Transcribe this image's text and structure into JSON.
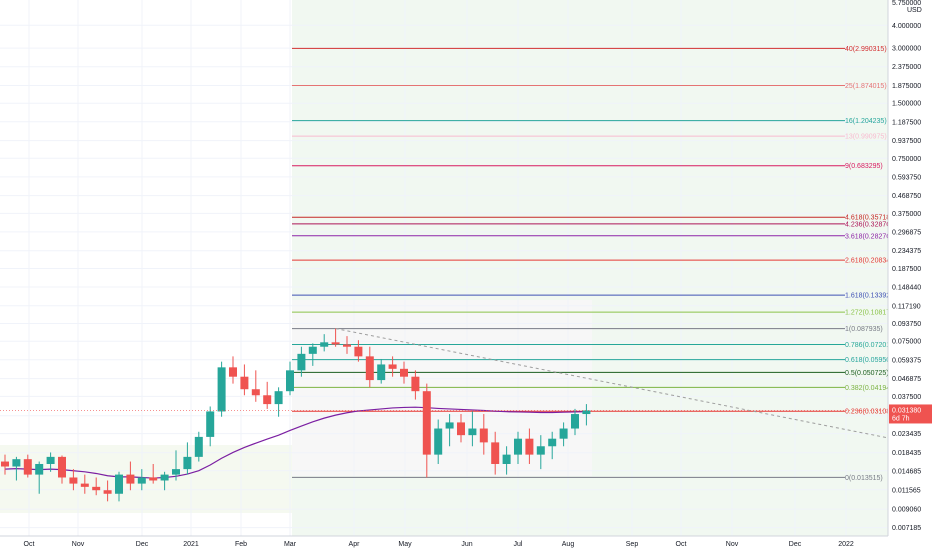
{
  "axis": {
    "currency": "USD",
    "top_tick": "5.750000",
    "y_ticks": [
      "4.000000",
      "3.000000",
      "2.375000",
      "1.875000",
      "1.500000",
      "1.187500",
      "0.937500",
      "0.750000",
      "0.593750",
      "0.468750",
      "0.375000",
      "0.296875",
      "0.234375",
      "0.187500",
      "0.148440",
      "0.117190",
      "0.093750",
      "0.075000",
      "0.059375",
      "0.046875",
      "0.037500",
      "0.029375",
      "0.023435",
      "0.018435",
      "0.014685",
      "0.011565",
      "0.009060",
      "0.007185"
    ],
    "x_ticks": [
      "Oct",
      "Nov",
      "Dec",
      "2021",
      "Feb",
      "Mar",
      "Apr",
      "May",
      "Jun",
      "Jul",
      "Aug",
      "Sep",
      "Oct",
      "Nov",
      "Dec",
      "2022"
    ]
  },
  "price_tag": {
    "price": "0.031380",
    "countdown": "6d 7h",
    "color": "#ef5350"
  },
  "colors": {
    "up": "#26a69a",
    "down": "#ef5350",
    "ma": "#7b1fa2"
  },
  "chart_data": {
    "type": "candlestick",
    "timeframe": "weekly",
    "fib_levels": [
      {
        "label": "40(2.990315)",
        "value": 2.990315,
        "color": "#d32f2f"
      },
      {
        "label": "25(1.874015)",
        "value": 1.874015,
        "color": "#e57373"
      },
      {
        "label": "16(1.204235)",
        "value": 1.204235,
        "color": "#26a69a"
      },
      {
        "label": "13(0.990975)",
        "value": 0.990975,
        "color": "#f8bbd0"
      },
      {
        "label": "9(0.683295)",
        "value": 0.683295,
        "color": "#d81b60"
      },
      {
        "label": "4.618(0.357185)",
        "value": 0.357185,
        "color": "#c62828"
      },
      {
        "label": "4.236(0.328760)",
        "value": 0.32876,
        "color": "#ad1457"
      },
      {
        "label": "3.618(0.282765)",
        "value": 0.282765,
        "color": "#8e24aa"
      },
      {
        "label": "2.618(0.208345)",
        "value": 0.208345,
        "color": "#e53935"
      },
      {
        "label": "1.618(0.133925)",
        "value": 0.133925,
        "color": "#3f51b5"
      },
      {
        "label": "1.272(0.108175)",
        "value": 0.108175,
        "color": "#8bc34a"
      },
      {
        "label": "1(0.087935)",
        "value": 0.087935,
        "color": "#787b86"
      },
      {
        "label": "0.786(0.072010)",
        "value": 0.07201,
        "color": "#26a69a"
      },
      {
        "label": "0.618(0.059505)",
        "value": 0.059505,
        "color": "#26a69a"
      },
      {
        "label": "0.5(0.050725)",
        "value": 0.050725,
        "color": "#1b5e20"
      },
      {
        "label": "0.382(0.041945)",
        "value": 0.041945,
        "color": "#7cb342"
      },
      {
        "label": "0.236(0.031080)",
        "value": 0.03108,
        "color": "#e53935"
      },
      {
        "label": "0(0.013515)",
        "value": 0.013515,
        "color": "#787b86"
      }
    ],
    "candles": [
      {
        "o": 0.0165,
        "h": 0.018,
        "l": 0.014,
        "c": 0.0155
      },
      {
        "o": 0.0155,
        "h": 0.0175,
        "l": 0.013,
        "c": 0.017
      },
      {
        "o": 0.017,
        "h": 0.018,
        "l": 0.0135,
        "c": 0.014
      },
      {
        "o": 0.014,
        "h": 0.0165,
        "l": 0.011,
        "c": 0.016
      },
      {
        "o": 0.016,
        "h": 0.0185,
        "l": 0.0145,
        "c": 0.0175
      },
      {
        "o": 0.0175,
        "h": 0.0178,
        "l": 0.0125,
        "c": 0.0135
      },
      {
        "o": 0.0135,
        "h": 0.015,
        "l": 0.0115,
        "c": 0.0125
      },
      {
        "o": 0.0125,
        "h": 0.014,
        "l": 0.011,
        "c": 0.012
      },
      {
        "o": 0.012,
        "h": 0.0135,
        "l": 0.0108,
        "c": 0.0115
      },
      {
        "o": 0.0115,
        "h": 0.013,
        "l": 0.01,
        "c": 0.011
      },
      {
        "o": 0.011,
        "h": 0.0145,
        "l": 0.01,
        "c": 0.014
      },
      {
        "o": 0.014,
        "h": 0.0165,
        "l": 0.0115,
        "c": 0.0125
      },
      {
        "o": 0.0125,
        "h": 0.015,
        "l": 0.0115,
        "c": 0.0135
      },
      {
        "o": 0.0135,
        "h": 0.016,
        "l": 0.0125,
        "c": 0.013
      },
      {
        "o": 0.013,
        "h": 0.0145,
        "l": 0.0115,
        "c": 0.014
      },
      {
        "o": 0.014,
        "h": 0.019,
        "l": 0.013,
        "c": 0.015
      },
      {
        "o": 0.015,
        "h": 0.021,
        "l": 0.014,
        "c": 0.0175
      },
      {
        "o": 0.0175,
        "h": 0.024,
        "l": 0.0165,
        "c": 0.0225
      },
      {
        "o": 0.0225,
        "h": 0.033,
        "l": 0.02,
        "c": 0.031
      },
      {
        "o": 0.031,
        "h": 0.058,
        "l": 0.029,
        "c": 0.054
      },
      {
        "o": 0.054,
        "h": 0.062,
        "l": 0.044,
        "c": 0.048
      },
      {
        "o": 0.048,
        "h": 0.056,
        "l": 0.038,
        "c": 0.041
      },
      {
        "o": 0.041,
        "h": 0.052,
        "l": 0.035,
        "c": 0.038
      },
      {
        "o": 0.038,
        "h": 0.045,
        "l": 0.032,
        "c": 0.034
      },
      {
        "o": 0.034,
        "h": 0.042,
        "l": 0.029,
        "c": 0.04
      },
      {
        "o": 0.04,
        "h": 0.058,
        "l": 0.038,
        "c": 0.052
      },
      {
        "o": 0.052,
        "h": 0.07,
        "l": 0.048,
        "c": 0.064
      },
      {
        "o": 0.064,
        "h": 0.073,
        "l": 0.055,
        "c": 0.07
      },
      {
        "o": 0.07,
        "h": 0.082,
        "l": 0.066,
        "c": 0.074
      },
      {
        "o": 0.074,
        "h": 0.088,
        "l": 0.07,
        "c": 0.072
      },
      {
        "o": 0.072,
        "h": 0.08,
        "l": 0.064,
        "c": 0.07
      },
      {
        "o": 0.07,
        "h": 0.076,
        "l": 0.058,
        "c": 0.062
      },
      {
        "o": 0.062,
        "h": 0.07,
        "l": 0.042,
        "c": 0.046
      },
      {
        "o": 0.046,
        "h": 0.06,
        "l": 0.044,
        "c": 0.056
      },
      {
        "o": 0.056,
        "h": 0.062,
        "l": 0.048,
        "c": 0.053
      },
      {
        "o": 0.053,
        "h": 0.058,
        "l": 0.044,
        "c": 0.048
      },
      {
        "o": 0.048,
        "h": 0.052,
        "l": 0.036,
        "c": 0.04
      },
      {
        "o": 0.04,
        "h": 0.044,
        "l": 0.0135,
        "c": 0.018
      },
      {
        "o": 0.018,
        "h": 0.028,
        "l": 0.016,
        "c": 0.025
      },
      {
        "o": 0.025,
        "h": 0.03,
        "l": 0.02,
        "c": 0.027
      },
      {
        "o": 0.027,
        "h": 0.03,
        "l": 0.021,
        "c": 0.023
      },
      {
        "o": 0.023,
        "h": 0.031,
        "l": 0.02,
        "c": 0.025
      },
      {
        "o": 0.025,
        "h": 0.03,
        "l": 0.018,
        "c": 0.021
      },
      {
        "o": 0.021,
        "h": 0.024,
        "l": 0.014,
        "c": 0.016
      },
      {
        "o": 0.016,
        "h": 0.02,
        "l": 0.014,
        "c": 0.018
      },
      {
        "o": 0.018,
        "h": 0.024,
        "l": 0.016,
        "c": 0.022
      },
      {
        "o": 0.022,
        "h": 0.025,
        "l": 0.016,
        "c": 0.018
      },
      {
        "o": 0.018,
        "h": 0.023,
        "l": 0.015,
        "c": 0.02
      },
      {
        "o": 0.02,
        "h": 0.024,
        "l": 0.017,
        "c": 0.022
      },
      {
        "o": 0.022,
        "h": 0.027,
        "l": 0.02,
        "c": 0.025
      },
      {
        "o": 0.025,
        "h": 0.032,
        "l": 0.023,
        "c": 0.03
      },
      {
        "o": 0.03,
        "h": 0.034,
        "l": 0.026,
        "c": 0.0314
      }
    ],
    "ma": [
      0.015,
      0.0151,
      0.015,
      0.0149,
      0.015,
      0.0149,
      0.0147,
      0.0145,
      0.0142,
      0.0138,
      0.0136,
      0.0136,
      0.0135,
      0.0134,
      0.0135,
      0.0137,
      0.0141,
      0.0147,
      0.0158,
      0.0172,
      0.0185,
      0.0197,
      0.0208,
      0.0219,
      0.023,
      0.0244,
      0.0258,
      0.0272,
      0.0285,
      0.0296,
      0.0305,
      0.0312,
      0.0316,
      0.032,
      0.0324,
      0.0326,
      0.0327,
      0.0325,
      0.0322,
      0.032,
      0.0318,
      0.0316,
      0.0314,
      0.0311,
      0.0309,
      0.0308,
      0.0307,
      0.0306,
      0.0306,
      0.0307,
      0.0308,
      0.0309
    ],
    "trendline": {
      "from_candle": 29,
      "from_price": 0.088,
      "to_candle": 95,
      "to_price": 0.0135
    }
  }
}
